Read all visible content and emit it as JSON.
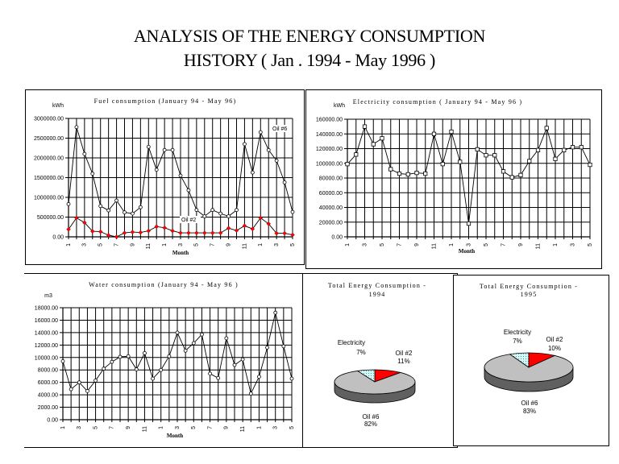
{
  "page": {
    "title_line1": "ANALYSIS OF THE ENERGY CONSUMPTION",
    "title_line2": "HISTORY  ( Jan . 1994 -  May 1996 )"
  },
  "colors": {
    "oil2": "#ff0000",
    "oil6_pie_top": "#c0c0c0",
    "oil6_pie_side": "#606060",
    "electricity_pie": "#d8f8f8",
    "electricity_dots": "#40a0a0"
  },
  "chart_data": [
    {
      "id": "fuel",
      "type": "line",
      "title": "Fuel consumption  (January 94 - May 96)",
      "ylabel": "kWh",
      "xlabel": "Month",
      "ylim": [
        0,
        3000000
      ],
      "yticks": [
        "0.00",
        "500000.00",
        "1000000.00",
        "1500000.00",
        "2000000.00",
        "2500000.00",
        "3000000.00"
      ],
      "ytick_values": [
        0,
        500000,
        1000000,
        1500000,
        2000000,
        2500000,
        3000000
      ],
      "x": [
        "1",
        "2",
        "3",
        "4",
        "5",
        "6",
        "7",
        "8",
        "9",
        "10",
        "11",
        "12",
        "1",
        "2",
        "3",
        "4",
        "5",
        "6",
        "7",
        "8",
        "9",
        "10",
        "11",
        "12",
        "1",
        "2",
        "3",
        "4",
        "5"
      ],
      "xtick_labels_shown": [
        "1",
        "3",
        "5",
        "7",
        "9",
        "11",
        "1",
        "3",
        "5",
        "7",
        "9",
        "11",
        "1",
        "3",
        "5"
      ],
      "grid": true,
      "series": [
        {
          "name": "Oil #6",
          "marker": "circle-open",
          "color": "#000000",
          "values": [
            830000,
            2780000,
            2100000,
            1600000,
            780000,
            670000,
            920000,
            620000,
            590000,
            750000,
            2280000,
            1700000,
            2200000,
            2200000,
            1550000,
            1180000,
            680000,
            520000,
            680000,
            590000,
            520000,
            680000,
            2350000,
            1630000,
            2650000,
            2200000,
            1930000,
            1380000,
            630000
          ]
        },
        {
          "name": "Oil #2",
          "marker": "diamond-filled",
          "color": "#ff0000",
          "values": [
            190000,
            480000,
            360000,
            140000,
            130000,
            40000,
            0,
            100000,
            120000,
            110000,
            150000,
            260000,
            230000,
            150000,
            100000,
            100000,
            100000,
            100000,
            100000,
            100000,
            220000,
            160000,
            280000,
            200000,
            480000,
            330000,
            90000,
            90000,
            50000
          ]
        }
      ]
    },
    {
      "id": "electricity",
      "type": "line",
      "title": "Electricity consumption  ( January 94 - May 96 )",
      "ylabel": "kWh",
      "xlabel": "Month",
      "ylim": [
        0,
        160000
      ],
      "yticks": [
        "0.00",
        "20000.00",
        "40000.00",
        "60000.00",
        "80000.00",
        "100000.00",
        "120000.00",
        "140000.00",
        "160000.00"
      ],
      "ytick_values": [
        0,
        20000,
        40000,
        60000,
        80000,
        100000,
        120000,
        140000,
        160000
      ],
      "x": [
        "1",
        "2",
        "3",
        "4",
        "5",
        "6",
        "7",
        "8",
        "9",
        "10",
        "11",
        "12",
        "1",
        "2",
        "3",
        "4",
        "5",
        "6",
        "7",
        "8",
        "9",
        "10",
        "11",
        "12",
        "1",
        "2",
        "3",
        "4",
        "5"
      ],
      "xtick_labels_shown": [
        "1",
        "3",
        "5",
        "7",
        "9",
        "11",
        "1",
        "3",
        "5",
        "7",
        "9",
        "11",
        "1",
        "3",
        "5"
      ],
      "grid": true,
      "series": [
        {
          "name": "Electricity",
          "marker": "square-open",
          "color": "#000000",
          "values": [
            99000,
            112000,
            150000,
            126000,
            134000,
            92000,
            86000,
            85000,
            87000,
            86000,
            140000,
            99000,
            143000,
            102000,
            18000,
            119000,
            111000,
            111000,
            89000,
            81000,
            84000,
            103000,
            118000,
            148000,
            106000,
            118000,
            122000,
            122000,
            98000
          ]
        }
      ]
    },
    {
      "id": "water",
      "type": "line",
      "title": "Water consumption   (January 94 - May 96 )",
      "ylabel": "m3",
      "xlabel": "Month",
      "ylim": [
        0,
        18000
      ],
      "yticks": [
        "0.00",
        "2000.00",
        "4000.00",
        "6000.00",
        "8000.00",
        "10000.00",
        "12000.00",
        "14000.00",
        "16000.00",
        "18000.00"
      ],
      "ytick_values": [
        0,
        2000,
        4000,
        6000,
        8000,
        10000,
        12000,
        14000,
        16000,
        18000
      ],
      "x": [
        "1",
        "2",
        "3",
        "4",
        "5",
        "6",
        "7",
        "8",
        "9",
        "10",
        "11",
        "12",
        "1",
        "2",
        "3",
        "4",
        "5",
        "6",
        "7",
        "8",
        "9",
        "10",
        "11",
        "12",
        "1",
        "2",
        "3",
        "4",
        "5"
      ],
      "xtick_labels_shown": [
        "1",
        "3",
        "5",
        "7",
        "9",
        "11",
        "1",
        "3",
        "5",
        "7",
        "9",
        "11",
        "1",
        "3",
        "5"
      ],
      "grid": true,
      "series": [
        {
          "name": "Water",
          "marker": "circle-open",
          "color": "#000000",
          "values": [
            9400,
            4900,
            6000,
            4600,
            6300,
            8200,
            9300,
            10100,
            10200,
            8100,
            10700,
            6600,
            8000,
            10200,
            14000,
            11100,
            12300,
            13700,
            7400,
            6700,
            13100,
            8800,
            9700,
            4200,
            6900,
            11600,
            17200,
            11800,
            6600
          ]
        }
      ]
    },
    {
      "id": "pie1994",
      "type": "pie",
      "title_line1": "Total Energy Consumption -",
      "title_line2": "1994",
      "style": "3d",
      "slices": [
        {
          "name": "Oil #2",
          "percent": 11,
          "label": "11%",
          "color": "#ff0000"
        },
        {
          "name": "Oil #6",
          "percent": 82,
          "label": "82%",
          "color": "#c0c0c0"
        },
        {
          "name": "Electricity",
          "percent": 7,
          "label": "7%",
          "color": "#d8f8f8"
        }
      ]
    },
    {
      "id": "pie1995",
      "type": "pie",
      "title_line1": "Total Energy Consumption -",
      "title_line2": "1995",
      "style": "3d",
      "slices": [
        {
          "name": "Oil #2",
          "percent": 10,
          "label": "10%",
          "color": "#ff0000"
        },
        {
          "name": "Oil #6",
          "percent": 83,
          "label": "83%",
          "color": "#c0c0c0"
        },
        {
          "name": "Electricity",
          "percent": 7,
          "label": "7%",
          "color": "#d8f8f8"
        }
      ]
    }
  ]
}
